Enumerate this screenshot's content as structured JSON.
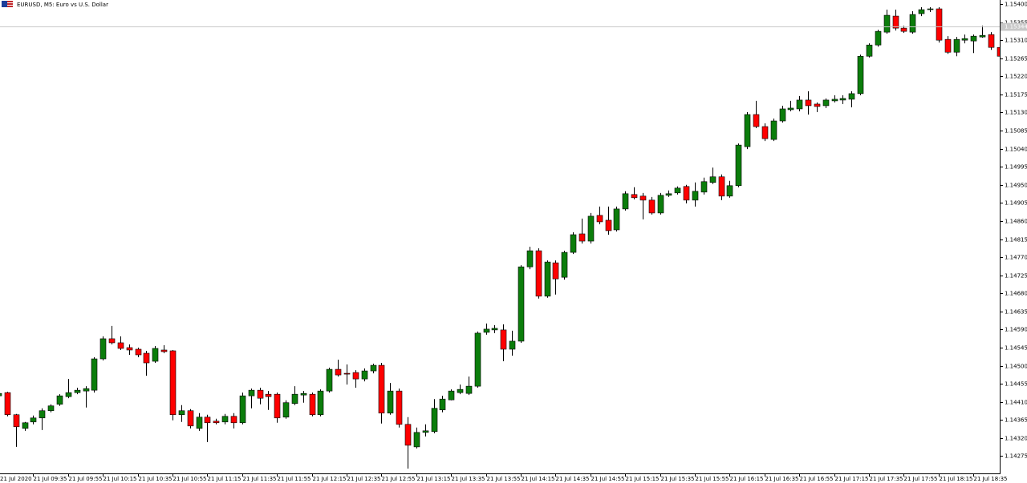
{
  "chart_data": {
    "type": "candlestick",
    "title": "EURUSD, M5:  Euro vs U.S. Dollar",
    "categories": [
      "21 Jul 2020",
      null,
      null,
      null,
      "21 Jul 09:35",
      null,
      null,
      null,
      "21 Jul 09:55",
      null,
      null,
      null,
      "21 Jul 10:15",
      null,
      null,
      null,
      "21 Jul 10:35",
      null,
      null,
      null,
      "21 Jul 10:55",
      null,
      null,
      null,
      "21 Jul 11:15",
      null,
      null,
      null,
      "21 Jul 11:35",
      null,
      null,
      null,
      "21 Jul 11:55",
      null,
      null,
      null,
      "21 Jul 12:15",
      null,
      null,
      null,
      "21 Jul 12:35",
      null,
      null,
      null,
      "21 Jul 12:55",
      null,
      null,
      null,
      "21 Jul 13:15",
      null,
      null,
      null,
      "21 Jul 13:35",
      null,
      null,
      null,
      "21 Jul 13:55",
      null,
      null,
      null,
      "21 Jul 14:15",
      null,
      null,
      null,
      "21 Jul 14:35",
      null,
      null,
      null,
      "21 Jul 14:55",
      null,
      null,
      null,
      "21 Jul 15:15",
      null,
      null,
      null,
      "21 Jul 15:35",
      null,
      null,
      null,
      "21 Jul 15:55",
      null,
      null,
      null,
      "21 Jul 16:15",
      null,
      null,
      null,
      "21 Jul 16:35",
      null,
      null,
      null,
      "21 Jul 16:55",
      null,
      null,
      null,
      "21 Jul 17:15",
      null,
      null,
      null,
      "21 Jul 17:35",
      null,
      null,
      null,
      "21 Jul 17:55",
      null,
      null,
      null,
      "21 Jul 18:15",
      null,
      null,
      null,
      "21 Jul 18:35",
      null,
      null,
      null
    ],
    "open": [
      1.14425,
      1.14433,
      1.14378,
      1.14344,
      1.1436,
      1.1437,
      1.14388,
      1.14404,
      1.14423,
      1.14433,
      1.14437,
      1.14439,
      1.14517,
      1.14567,
      1.14557,
      1.14545,
      1.14541,
      1.14531,
      1.14511,
      1.14539,
      1.14537,
      1.14378,
      1.14388,
      1.14344,
      1.14372,
      1.14362,
      1.1436,
      1.14374,
      1.14358,
      1.14425,
      1.14439,
      1.14429,
      1.14429,
      1.14372,
      1.14406,
      1.14427,
      1.14429,
      1.14378,
      1.14437,
      1.14491,
      1.14481,
      1.14483,
      1.14467,
      1.14487,
      1.14501,
      1.14382,
      1.14437,
      1.14354,
      1.14298,
      1.14334,
      1.14336,
      1.1439,
      1.14415,
      1.14433,
      1.14431,
      1.14449,
      1.14583,
      1.14589,
      1.14589,
      1.14541,
      1.14561,
      1.14746,
      1.14786,
      1.14673,
      1.14756,
      1.1472,
      1.14782,
      1.14828,
      1.1481,
      1.14874,
      1.14862,
      1.14838,
      1.1489,
      1.14926,
      1.14922,
      1.14912,
      1.1488,
      1.14924,
      1.1493,
      1.14946,
      1.14912,
      1.14932,
      1.14956,
      1.1497,
      1.14922,
      1.14948,
      1.15045,
      1.15125,
      1.15095,
      1.15063,
      1.15109,
      1.15137,
      1.15139,
      1.15161,
      1.15151,
      1.15147,
      1.15159,
      1.15161,
      1.15163,
      1.15177,
      1.1527,
      1.15298,
      1.1533,
      1.1537,
      1.1534,
      1.1533,
      1.15376,
      1.15386,
      1.15388,
      1.15312,
      1.1528,
      1.1531,
      1.15308,
      1.15318,
      1.15324,
      1.15292
    ],
    "high": [
      1.14433,
      1.14435,
      1.1438,
      1.1436,
      1.14376,
      1.14394,
      1.14404,
      1.14429,
      1.14467,
      1.14445,
      1.14449,
      1.14521,
      1.14573,
      1.14599,
      1.14573,
      1.14553,
      1.14545,
      1.14537,
      1.14549,
      1.14551,
      1.14539,
      1.14402,
      1.14392,
      1.14382,
      1.14378,
      1.14368,
      1.1438,
      1.14382,
      1.14433,
      1.14443,
      1.14445,
      1.14437,
      1.14433,
      1.14414,
      1.14449,
      1.14437,
      1.14433,
      1.14441,
      1.14495,
      1.14515,
      1.14503,
      1.14489,
      1.14493,
      1.14505,
      1.14507,
      1.14457,
      1.14443,
      1.14372,
      1.14346,
      1.14354,
      1.14417,
      1.14425,
      1.14441,
      1.14453,
      1.14473,
      1.14585,
      1.14605,
      1.14601,
      1.14603,
      1.14587,
      1.1475,
      1.14796,
      1.14792,
      1.14762,
      1.14762,
      1.14786,
      1.14832,
      1.14866,
      1.1488,
      1.14896,
      1.14896,
      1.14896,
      1.14934,
      1.14944,
      1.1493,
      1.1492,
      1.1493,
      1.14936,
      1.14946,
      1.1495,
      1.14956,
      1.14968,
      1.14993,
      1.14976,
      1.1496,
      1.15053,
      1.15131,
      1.15159,
      1.15103,
      1.15115,
      1.15147,
      1.15159,
      1.15171,
      1.15183,
      1.15155,
      1.15165,
      1.15173,
      1.15173,
      1.15183,
      1.15274,
      1.15302,
      1.15336,
      1.15386,
      1.15386,
      1.15346,
      1.15382,
      1.15392,
      1.15392,
      1.15392,
      1.1532,
      1.15318,
      1.15324,
      1.15324,
      1.15346,
      1.1533,
      1.15296
    ],
    "low": [
      1.14423,
      1.14374,
      1.14298,
      1.14338,
      1.14354,
      1.1434,
      1.14384,
      1.144,
      1.14419,
      1.14429,
      1.14396,
      1.14433,
      1.14513,
      1.14553,
      1.14539,
      1.14527,
      1.14521,
      1.14475,
      1.14507,
      1.14531,
      1.14364,
      1.1436,
      1.14344,
      1.14338,
      1.1431,
      1.14354,
      1.14354,
      1.14344,
      1.14354,
      1.14394,
      1.14404,
      1.1439,
      1.14358,
      1.14368,
      1.14402,
      1.14408,
      1.14374,
      1.14374,
      1.14433,
      1.14473,
      1.14453,
      1.14445,
      1.14461,
      1.14481,
      1.14356,
      1.14378,
      1.14346,
      1.14244,
      1.14294,
      1.14324,
      1.14332,
      1.14384,
      1.14414,
      1.14429,
      1.14427,
      1.14445,
      1.14577,
      1.14581,
      1.14511,
      1.14525,
      1.14557,
      1.1474,
      1.14667,
      1.14669,
      1.14677,
      1.14714,
      1.14778,
      1.14804,
      1.14804,
      1.14852,
      1.14826,
      1.14834,
      1.14886,
      1.14914,
      1.14864,
      1.14876,
      1.14876,
      1.1492,
      1.14926,
      1.14904,
      1.14896,
      1.14926,
      1.14952,
      1.14912,
      1.14918,
      1.14944,
      1.15039,
      1.15091,
      1.15059,
      1.15059,
      1.15105,
      1.15133,
      1.15133,
      1.15125,
      1.15131,
      1.15141,
      1.15155,
      1.15151,
      1.15143,
      1.15173,
      1.15267,
      1.15294,
      1.15326,
      1.15334,
      1.15328,
      1.15326,
      1.1537,
      1.1538,
      1.15304,
      1.15276,
      1.1527,
      1.15302,
      1.15278,
      1.15316,
      1.15286,
      1.15268
    ],
    "close": [
      1.14431,
      1.14378,
      1.14348,
      1.14358,
      1.1437,
      1.14388,
      1.144,
      1.14425,
      1.14433,
      1.14439,
      1.14443,
      1.14517,
      1.14567,
      1.14557,
      1.14543,
      1.14539,
      1.14527,
      1.14507,
      1.14543,
      1.14535,
      1.14378,
      1.14388,
      1.1435,
      1.14372,
      1.14358,
      1.14358,
      1.14374,
      1.14358,
      1.14425,
      1.14439,
      1.14419,
      1.14423,
      1.1437,
      1.14408,
      1.14429,
      1.14431,
      1.14378,
      1.14437,
      1.14491,
      1.14477,
      1.14479,
      1.14467,
      1.14487,
      1.14501,
      1.14382,
      1.14437,
      1.14354,
      1.14302,
      1.14334,
      1.14338,
      1.14394,
      1.14417,
      1.14437,
      1.14441,
      1.14449,
      1.14581,
      1.14591,
      1.14593,
      1.14541,
      1.14561,
      1.14746,
      1.14786,
      1.14673,
      1.14758,
      1.14716,
      1.14782,
      1.14826,
      1.1481,
      1.14872,
      1.14858,
      1.14836,
      1.1489,
      1.14928,
      1.14918,
      1.14912,
      1.1488,
      1.14924,
      1.14928,
      1.14942,
      1.14912,
      1.14934,
      1.14958,
      1.1497,
      1.14922,
      1.14948,
      1.15049,
      1.15125,
      1.15095,
      1.15065,
      1.15109,
      1.15139,
      1.15141,
      1.15161,
      1.15147,
      1.15145,
      1.15161,
      1.15163,
      1.15165,
      1.15177,
      1.1527,
      1.15298,
      1.15332,
      1.15372,
      1.1534,
      1.15332,
      1.15374,
      1.15386,
      1.15388,
      1.1531,
      1.1528,
      1.15312,
      1.15314,
      1.1532,
      1.15322,
      1.15292,
      1.1527
    ],
    "up_color": "#0b7d0b",
    "down_color": "#ff0000",
    "ylim": [
      1.14234,
      1.1541
    ],
    "yticks": [
      {
        "value": 1.154,
        "label": "1.15400"
      },
      1.15355,
      {
        "value": 1.1531,
        "label": "1.15310"
      },
      1.15265,
      {
        "value": 1.1522,
        "label": "1.15220"
      },
      1.15175,
      {
        "value": 1.1513,
        "label": "1.15130"
      },
      1.15085,
      {
        "value": 1.1504,
        "label": "1.15040"
      },
      1.14995,
      {
        "value": 1.1495,
        "label": "1.14950"
      },
      1.14905,
      {
        "value": 1.1486,
        "label": "1.14860"
      },
      1.14815,
      {
        "value": 1.1477,
        "label": "1.14770"
      },
      1.14725,
      {
        "value": 1.1468,
        "label": "1.14680"
      },
      1.14635,
      {
        "value": 1.1459,
        "label": "1.14590"
      },
      1.14545,
      {
        "value": 1.145,
        "label": "1.14500"
      },
      1.14455,
      {
        "value": 1.1441,
        "label": "1.14410"
      },
      1.14365,
      {
        "value": 1.1432,
        "label": "1.14320"
      },
      1.14275
    ],
    "bid_line": {
      "value": 1.15344,
      "label": "1.15344"
    },
    "grid": false
  }
}
